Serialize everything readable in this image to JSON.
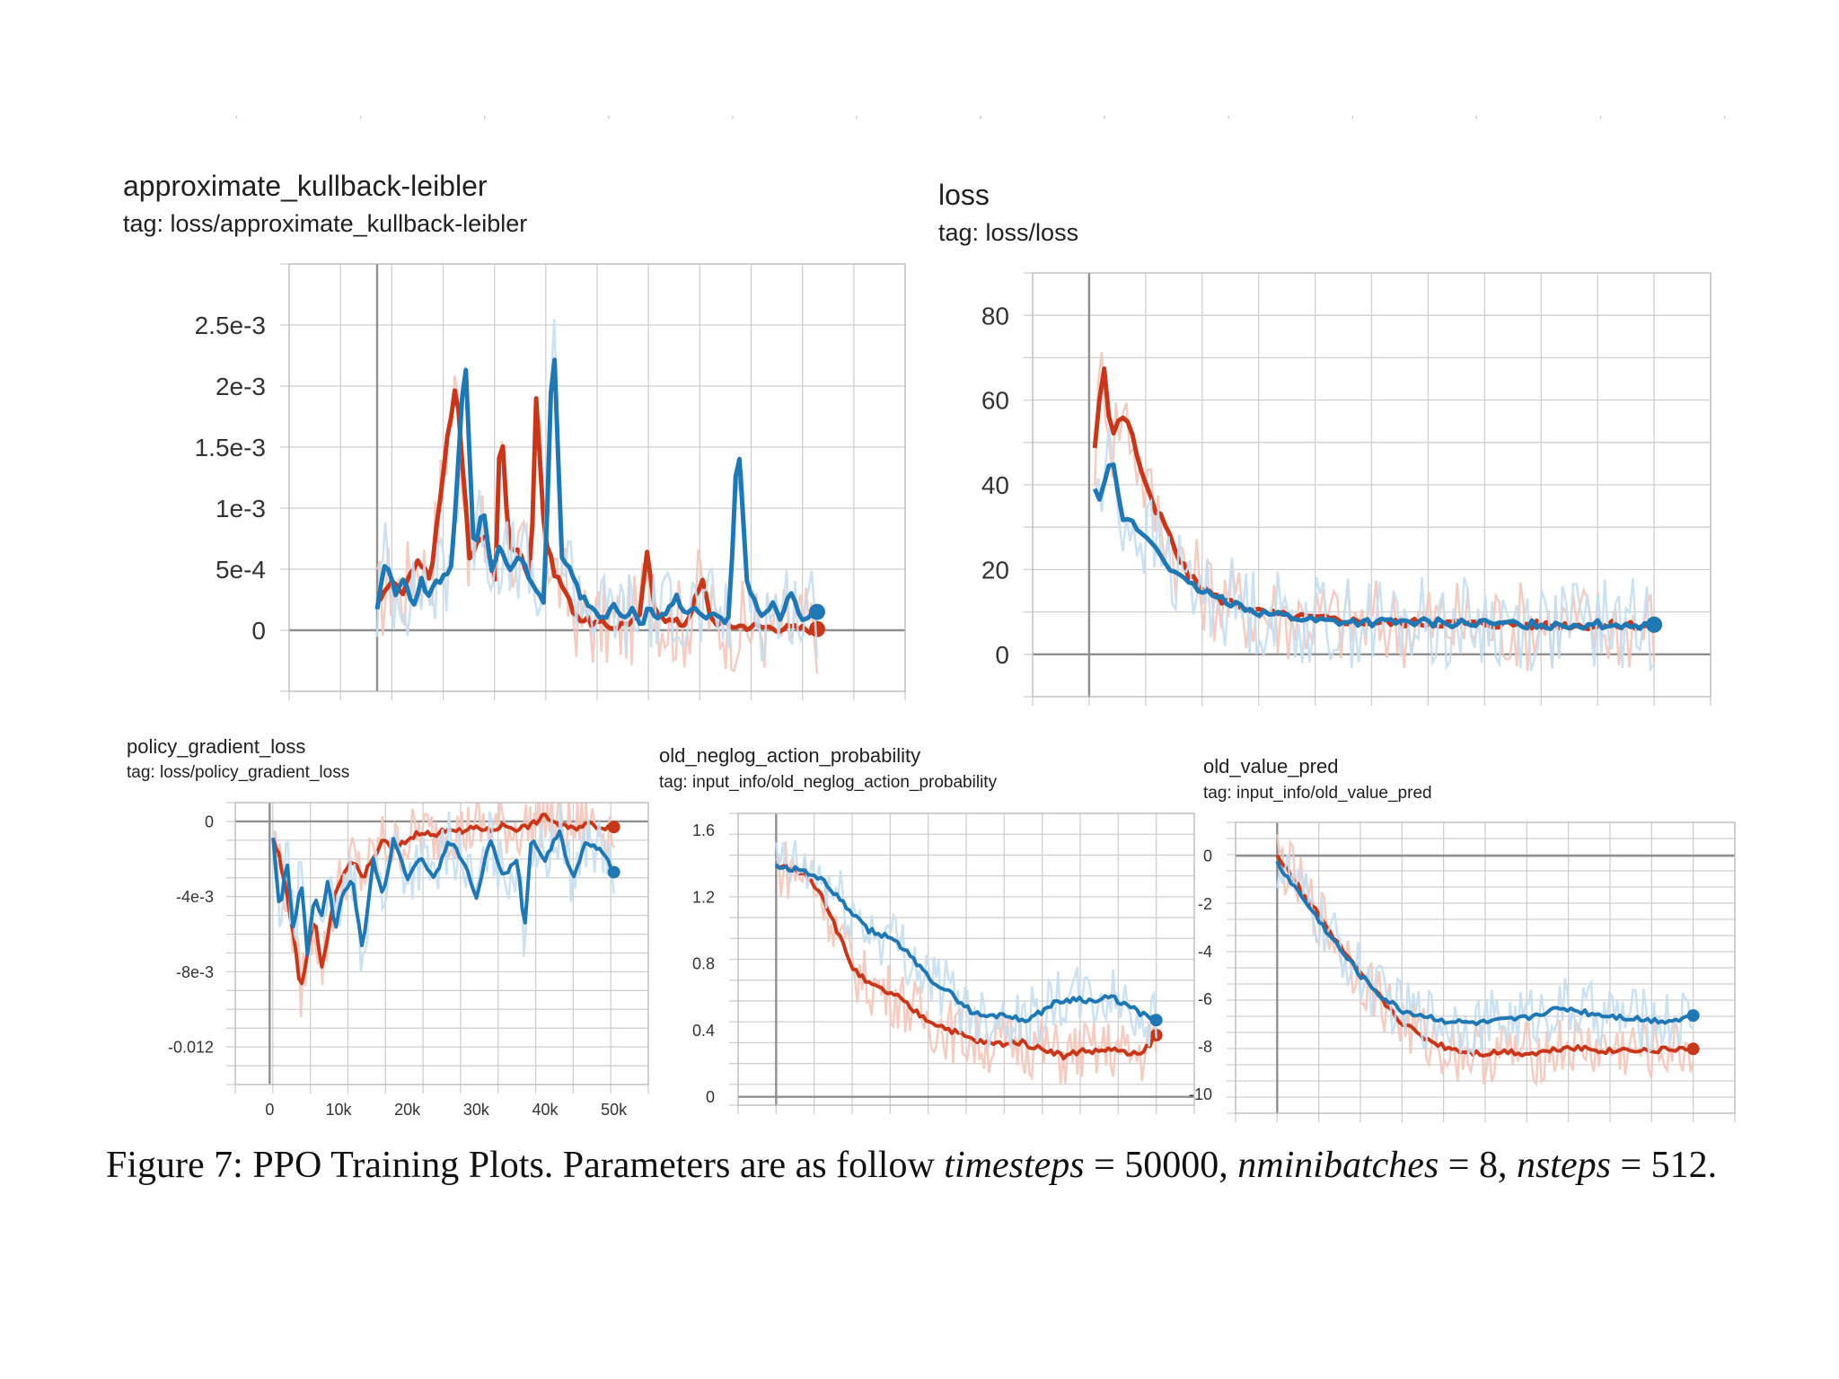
{
  "top_dots": "' ' ' ' ' ' ' ' ' ' ' ' '",
  "colors": {
    "blue": "#1f77b4",
    "red": "#c8371a",
    "blue_light": "#c7def0",
    "red_light": "#f3c6bb"
  },
  "caption": {
    "prefix": "Figure 7: PPO Training Plots. Parameters are as follow ",
    "v1": "timesteps",
    "eq1": " = 50000, ",
    "v2": "nminibatches",
    "eq2": " = 8, ",
    "v3": "nsteps",
    "eq3": " = 512."
  },
  "chart_data": [
    {
      "type": "line",
      "title": "approximate_kullback-leibler",
      "subtitle": "tag: loss/approximate_kullback-leibler",
      "xlim": [
        -10000,
        60000
      ],
      "ylim": [
        -0.0005,
        0.003
      ],
      "yticks": [
        0,
        0.0005,
        0.001,
        0.0015,
        0.002,
        0.0025
      ],
      "ytick_labels": [
        "0",
        "5e-4",
        "1e-3",
        "1.5e-3",
        "2e-3",
        "2.5e-3"
      ],
      "grid": true,
      "series": [
        {
          "color": "red",
          "x": [
            0,
            1500,
            3000,
            4500,
            6000,
            7500,
            8000,
            9000,
            10500,
            12000,
            13500,
            14000,
            15000,
            16500,
            17500,
            18000,
            19000,
            20000,
            21500,
            22000,
            23000,
            25000,
            27000,
            30000,
            30500,
            31500,
            33000,
            35000,
            37000,
            38000,
            40000,
            43000,
            46000,
            49000,
            50000
          ],
          "y": [
            0.0002,
            0.0004,
            0.0003,
            0.0006,
            0.0004,
            0.0013,
            0.0016,
            0.002,
            0.0006,
            0.0008,
            0.0004,
            0.0018,
            0.0007,
            0.0006,
            0.0004,
            0.002,
            0.0008,
            0.0005,
            0.0003,
            0.0002,
            0.0001,
            5e-05,
            3e-05,
            0.0001,
            0.0007,
            0.0002,
            8e-05,
            5e-05,
            0.0004,
            8e-05,
            4e-05,
            3e-05,
            2e-05,
            1e-05,
            1e-05
          ]
        },
        {
          "color": "blue",
          "x": [
            0,
            1000,
            2000,
            3000,
            4000,
            5000,
            6000,
            7000,
            8500,
            10000,
            11000,
            12000,
            13000,
            14000,
            15000,
            16000,
            17000,
            18000,
            19000,
            20000,
            21000,
            22000,
            23000,
            24000,
            25000,
            26000,
            27000,
            28000,
            29000,
            30000,
            31000,
            32000,
            33000,
            34000,
            35000,
            36000,
            37000,
            38000,
            39000,
            40000,
            41000,
            42000,
            43000,
            44000,
            45000,
            46000,
            47000,
            48000,
            49000,
            50000
          ],
          "y": [
            0.0002,
            0.0006,
            0.0003,
            0.0004,
            0.0002,
            0.0004,
            0.0003,
            0.0004,
            0.0005,
            0.0023,
            0.0006,
            0.001,
            0.0005,
            0.0007,
            0.0005,
            0.0006,
            0.0005,
            0.0003,
            0.00024,
            0.0025,
            0.0006,
            0.0005,
            0.0003,
            0.0002,
            0.00015,
            0.0001,
            0.0002,
            0.0001,
            0.00015,
            5e-05,
            0.0002,
            0.0001,
            0.00015,
            0.0003,
            0.0001,
            0.0002,
            0.0001,
            0.00015,
            0.0001,
            8e-05,
            0.0016,
            0.0004,
            0.0002,
            0.0001,
            0.0002,
            0.0001,
            0.0003,
            0.0001,
            0.00012,
            0.00015
          ]
        }
      ]
    },
    {
      "type": "line",
      "title": "loss",
      "subtitle": "tag: loss/loss",
      "xlim": [
        -10000,
        110000
      ],
      "ylim": [
        -10,
        90
      ],
      "yticks": [
        0,
        20,
        40,
        60,
        80
      ],
      "ytick_labels": [
        "0",
        "20",
        "40",
        "60",
        "80"
      ],
      "grid": true,
      "series": [
        {
          "color": "red",
          "x": [
            1000,
            2500,
            4000,
            5500,
            7000,
            8500,
            10000,
            11500,
            13000,
            14500,
            16000,
            18000,
            20000,
            23000,
            26000,
            30000,
            35000,
            40000,
            50000,
            60000,
            70000,
            80000,
            90000,
            100000
          ],
          "y": [
            48,
            70,
            50,
            57,
            55,
            47,
            40,
            34,
            32,
            27,
            22,
            18,
            16,
            13,
            12,
            10,
            9,
            8.5,
            7.5,
            7.5,
            7.2,
            7,
            6.8,
            7
          ]
        },
        {
          "color": "blue",
          "x": [
            1000,
            2000,
            3000,
            4000,
            5000,
            6000,
            7500,
            9000,
            10500,
            12000,
            14000,
            16000,
            18000,
            20000,
            23000,
            26000,
            30000,
            35000,
            40000,
            50000,
            60000,
            70000,
            80000,
            90000,
            100000
          ],
          "y": [
            40,
            36,
            44,
            47,
            38,
            32,
            31,
            29,
            27,
            25,
            21,
            18,
            16,
            15,
            13,
            12,
            10,
            9,
            8,
            7.5,
            7.5,
            7.2,
            7,
            7,
            7
          ]
        }
      ]
    },
    {
      "type": "line",
      "title": "policy_gradient_loss",
      "subtitle": "tag: loss/policy_gradient_loss",
      "xlim": [
        -5000,
        55000
      ],
      "ylim": [
        -0.014,
        0.001
      ],
      "xticks": [
        0,
        10000,
        20000,
        30000,
        40000,
        50000
      ],
      "xtick_labels": [
        "0",
        "10k",
        "20k",
        "30k",
        "40k",
        "50k"
      ],
      "yticks": [
        0,
        -0.004,
        -0.008,
        -0.012
      ],
      "ytick_labels": [
        "0",
        "-4e-3",
        "-8e-3",
        "-0.012"
      ],
      "grid": true,
      "series": [
        {
          "color": "red",
          "x": [
            500,
            1500,
            2500,
            3500,
            4500,
            5500,
            6500,
            7500,
            8500,
            9500,
            10500,
            12000,
            13500,
            15000,
            16500,
            18000,
            20000,
            22000,
            24000,
            26000,
            28000,
            30000,
            32000,
            34000,
            36000,
            38000,
            40000,
            42000,
            44000,
            46000,
            48000,
            50000
          ],
          "y": [
            -0.001,
            -0.002,
            -0.004,
            -0.006,
            -0.009,
            -0.007,
            -0.005,
            -0.008,
            -0.006,
            -0.004,
            -0.003,
            -0.002,
            -0.003,
            -0.002,
            -0.001,
            -0.0015,
            -0.001,
            -0.0005,
            -0.0008,
            -0.0003,
            -0.0006,
            -0.0003,
            -0.0005,
            -0.0002,
            -0.0004,
            -0.0002,
            0.0003,
            -0.0002,
            -0.0004,
            -0.0001,
            -0.0003,
            -0.0003
          ]
        },
        {
          "color": "blue",
          "x": [
            500,
            1500,
            2500,
            3500,
            4500,
            5500,
            6500,
            7500,
            8500,
            9500,
            10500,
            12000,
            13500,
            15000,
            16500,
            18000,
            20000,
            22000,
            24000,
            26000,
            28000,
            30000,
            32000,
            34000,
            36000,
            37000,
            38000,
            40000,
            42000,
            44000,
            46000,
            48000,
            50000
          ],
          "y": [
            -0.001,
            -0.005,
            -0.002,
            -0.006,
            -0.003,
            -0.007,
            -0.004,
            -0.005,
            -0.003,
            -0.006,
            -0.004,
            -0.003,
            -0.007,
            -0.002,
            -0.004,
            -0.001,
            -0.003,
            -0.002,
            -0.003,
            -0.001,
            -0.002,
            -0.004,
            -0.001,
            -0.003,
            -0.002,
            -0.006,
            -0.001,
            -0.002,
            -0.0005,
            -0.003,
            -0.001,
            -0.0015,
            -0.0027
          ]
        }
      ]
    },
    {
      "type": "line",
      "title": "old_neglog_action_probability",
      "subtitle": "tag: input_info/old_neglog_action_probability",
      "xlim": [
        -5000,
        55000
      ],
      "ylim": [
        -0.05,
        1.7
      ],
      "yticks": [
        0,
        0.4,
        0.8,
        1.2,
        1.6
      ],
      "ytick_labels": [
        "0",
        "0.4",
        "0.8",
        "1.2",
        "1.6"
      ],
      "grid": true,
      "series": [
        {
          "color": "red",
          "x": [
            0,
            2000,
            4000,
            6000,
            8000,
            10000,
            12000,
            14000,
            16000,
            18000,
            20000,
            22000,
            24000,
            26000,
            28000,
            30000,
            32000,
            34000,
            36000,
            38000,
            40000,
            42000,
            44000,
            46000,
            48000,
            50000
          ],
          "y": [
            1.38,
            1.37,
            1.33,
            1.22,
            1.0,
            0.78,
            0.68,
            0.64,
            0.6,
            0.52,
            0.46,
            0.42,
            0.38,
            0.34,
            0.32,
            0.32,
            0.33,
            0.3,
            0.28,
            0.24,
            0.28,
            0.27,
            0.29,
            0.26,
            0.25,
            0.37
          ]
        },
        {
          "color": "blue",
          "x": [
            0,
            2000,
            4000,
            6000,
            8000,
            10000,
            12000,
            14000,
            16000,
            18000,
            20000,
            22000,
            24000,
            26000,
            28000,
            30000,
            32000,
            34000,
            36000,
            38000,
            40000,
            42000,
            44000,
            46000,
            48000,
            50000
          ],
          "y": [
            1.38,
            1.37,
            1.35,
            1.3,
            1.2,
            1.1,
            1.0,
            0.97,
            0.93,
            0.82,
            0.72,
            0.65,
            0.58,
            0.5,
            0.48,
            0.5,
            0.46,
            0.48,
            0.55,
            0.58,
            0.59,
            0.57,
            0.6,
            0.55,
            0.5,
            0.46
          ]
        }
      ]
    },
    {
      "type": "line",
      "title": "old_value_pred",
      "subtitle": "tag: input_info/old_value_pred",
      "xlim": [
        -5000,
        55000
      ],
      "ylim": [
        -10.8,
        1.4
      ],
      "yticks": [
        0,
        -2,
        -4,
        -6,
        -8,
        -10
      ],
      "ytick_labels": [
        "0",
        "-2",
        "-4",
        "-6",
        "-8",
        "-10"
      ],
      "grid": true,
      "series": [
        {
          "color": "red",
          "x": [
            0,
            2500,
            5000,
            7500,
            10000,
            12500,
            15000,
            17500,
            20000,
            22500,
            25000,
            27500,
            30000,
            32500,
            35000,
            37500,
            40000,
            42500,
            45000,
            47500,
            50000
          ],
          "y": [
            0,
            -1.2,
            -2.5,
            -3.8,
            -5.0,
            -6.0,
            -7.0,
            -7.6,
            -8.0,
            -8.2,
            -8.3,
            -8.2,
            -8.3,
            -8.2,
            -8.0,
            -8.1,
            -8.2,
            -8.1,
            -8.2,
            -8.1,
            -8.1
          ]
        },
        {
          "color": "blue",
          "x": [
            0,
            2500,
            5000,
            7500,
            10000,
            12500,
            15000,
            17500,
            20000,
            22500,
            25000,
            27500,
            30000,
            32500,
            35000,
            37500,
            40000,
            42500,
            45000,
            47500,
            50000
          ],
          "y": [
            -0.3,
            -1.5,
            -2.7,
            -3.9,
            -5.0,
            -5.9,
            -6.5,
            -6.7,
            -6.9,
            -7.0,
            -7.0,
            -6.9,
            -6.8,
            -6.5,
            -6.4,
            -6.6,
            -6.7,
            -6.8,
            -6.9,
            -6.9,
            -6.7
          ]
        }
      ]
    }
  ]
}
